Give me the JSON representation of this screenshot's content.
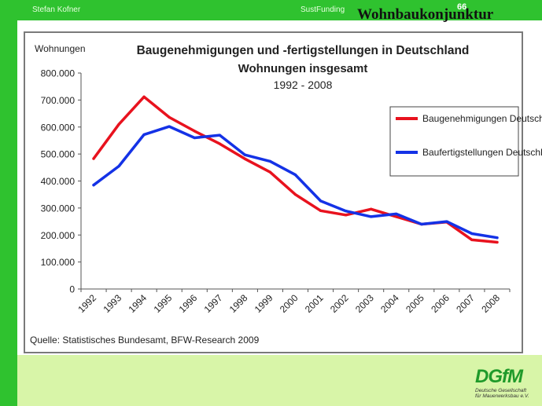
{
  "header": {
    "author": "Stefan Kofner",
    "project": "SustFunding",
    "page_number": "66",
    "slide_title": "Wohnbaukonjunktur"
  },
  "colors": {
    "frame_green": "#2fc22f",
    "light_green": "#d8f5a8",
    "series_red": "#e8121e",
    "series_blue": "#1432e6"
  },
  "chart_data": {
    "type": "line",
    "title": "Baugenehmigungen und -fertigstellungen in Deutschland",
    "subtitle": "Wohnungen insgesamt",
    "period": "1992 - 2008",
    "ylabel": "Wohnungen",
    "xlabel": "",
    "x": [
      "1992",
      "1993",
      "1994",
      "1995",
      "1996",
      "1997",
      "1998",
      "1999",
      "2000",
      "2001",
      "2002",
      "2003",
      "2004",
      "2005",
      "2006",
      "2007",
      "2008"
    ],
    "ylim": [
      0,
      800000
    ],
    "yticks": [
      0,
      100000,
      200000,
      300000,
      400000,
      500000,
      600000,
      700000,
      800000
    ],
    "ytick_labels": [
      "0",
      "100.000",
      "200.000",
      "300.000",
      "400.000",
      "500.000",
      "600.000",
      "700.000",
      "800.000"
    ],
    "grid": false,
    "legend_position": "right",
    "series": [
      {
        "name": "Baugenehmigungen Deutschland",
        "color": "#e8121e",
        "values": [
          483000,
          610000,
          712000,
          636000,
          585000,
          538000,
          482000,
          433000,
          350000,
          290000,
          274000,
          296000,
          268000,
          240000,
          248000,
          182000,
          173000
        ]
      },
      {
        "name": "Baufertigstellungen Deutschland",
        "color": "#1432e6",
        "values": [
          385000,
          455000,
          572000,
          602000,
          560000,
          570000,
          497000,
          473000,
          423000,
          326000,
          289000,
          268000,
          278000,
          240000,
          250000,
          205000,
          190000
        ]
      }
    ],
    "source": "Quelle: Statistisches Bundesamt, BFW-Research 2009"
  },
  "logo": {
    "name": "DGfM",
    "subtitle_line1": "Deutsche Gesellschaft",
    "subtitle_line2": "für Mauerwerksbau e.V."
  }
}
